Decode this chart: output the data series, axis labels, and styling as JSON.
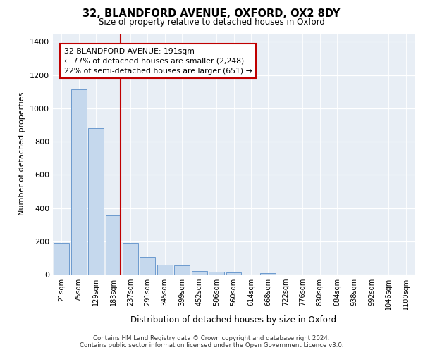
{
  "title_line1": "32, BLANDFORD AVENUE, OXFORD, OX2 8DY",
  "title_line2": "Size of property relative to detached houses in Oxford",
  "xlabel": "Distribution of detached houses by size in Oxford",
  "ylabel": "Number of detached properties",
  "categories": [
    "21sqm",
    "75sqm",
    "129sqm",
    "183sqm",
    "237sqm",
    "291sqm",
    "345sqm",
    "399sqm",
    "452sqm",
    "506sqm",
    "560sqm",
    "614sqm",
    "668sqm",
    "722sqm",
    "776sqm",
    "830sqm",
    "884sqm",
    "938sqm",
    "992sqm",
    "1046sqm",
    "1100sqm"
  ],
  "values": [
    190,
    1115,
    880,
    355,
    192,
    105,
    58,
    55,
    20,
    17,
    12,
    0,
    10,
    0,
    0,
    0,
    0,
    0,
    0,
    0,
    0
  ],
  "bar_color": "#c5d8ed",
  "bar_edgecolor": "#5b8fc9",
  "vline_color": "#c00000",
  "annotation_text": "32 BLANDFORD AVENUE: 191sqm\n← 77% of detached houses are smaller (2,248)\n22% of semi-detached houses are larger (651) →",
  "annotation_box_facecolor": "#ffffff",
  "annotation_box_edgecolor": "#c00000",
  "ylim": [
    0,
    1450
  ],
  "yticks": [
    0,
    200,
    400,
    600,
    800,
    1000,
    1200,
    1400
  ],
  "footer_line1": "Contains HM Land Registry data © Crown copyright and database right 2024.",
  "footer_line2": "Contains public sector information licensed under the Open Government Licence v3.0.",
  "bg_color": "#ffffff",
  "plot_bg_color": "#e8eef5"
}
